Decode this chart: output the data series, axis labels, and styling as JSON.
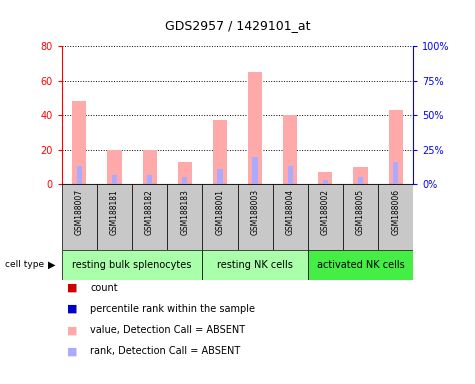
{
  "title": "GDS2957 / 1429101_at",
  "samples": [
    "GSM188007",
    "GSM188181",
    "GSM188182",
    "GSM188183",
    "GSM188001",
    "GSM188003",
    "GSM188004",
    "GSM188002",
    "GSM188005",
    "GSM188006"
  ],
  "value_absent": [
    48,
    20,
    20,
    13,
    37,
    65,
    40,
    7,
    10,
    43
  ],
  "rank_absent": [
    13,
    7,
    7,
    5,
    11,
    20,
    13,
    3,
    5,
    16
  ],
  "cell_groups": [
    {
      "label": "resting bulk splenocytes",
      "start": 0,
      "end": 4,
      "color": "#aaffaa"
    },
    {
      "label": "resting NK cells",
      "start": 4,
      "end": 7,
      "color": "#aaffaa"
    },
    {
      "label": "activated NK cells",
      "start": 7,
      "end": 10,
      "color": "#44ee44"
    }
  ],
  "ylim_left": [
    0,
    80
  ],
  "ylim_right": [
    0,
    100
  ],
  "yticks_left": [
    0,
    20,
    40,
    60,
    80
  ],
  "yticks_right": [
    0,
    25,
    50,
    75,
    100
  ],
  "ytick_labels_right": [
    "0%",
    "25%",
    "50%",
    "75%",
    "100%"
  ],
  "value_bar_color": "#ffaaaa",
  "rank_bar_color": "#aaaaff",
  "count_color": "#cc0000",
  "percentile_color": "#0000cc",
  "bg_sample_row": "#c8c8c8",
  "legend_items": [
    {
      "color": "#cc0000",
      "label": "count"
    },
    {
      "color": "#0000cc",
      "label": "percentile rank within the sample"
    },
    {
      "color": "#ffaaaa",
      "label": "value, Detection Call = ABSENT"
    },
    {
      "color": "#aaaaff",
      "label": "rank, Detection Call = ABSENT"
    }
  ]
}
